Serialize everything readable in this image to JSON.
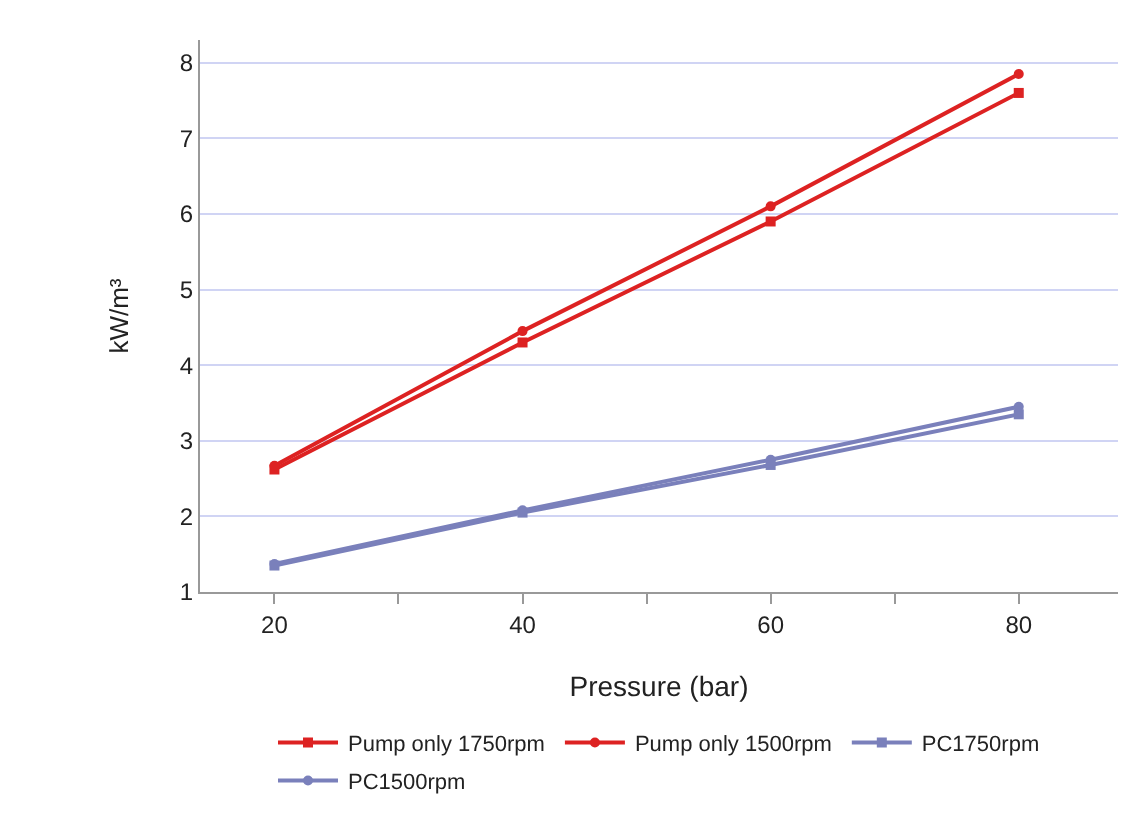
{
  "chart_data": {
    "type": "line",
    "xlabel": "Pressure (bar)",
    "ylabel": "kW/m³",
    "x": [
      20,
      40,
      60,
      80
    ],
    "series": [
      {
        "name": "Pump only 1750rpm",
        "color": "#dd2222",
        "marker": "square",
        "values": [
          2.62,
          4.3,
          5.9,
          7.6
        ]
      },
      {
        "name": "Pump only 1500rpm",
        "color": "#dd2222",
        "marker": "circle",
        "values": [
          2.67,
          4.45,
          6.1,
          7.85
        ]
      },
      {
        "name": "PC1750rpm",
        "color": "#7a80bb",
        "marker": "square",
        "values": [
          1.35,
          2.05,
          2.68,
          3.35
        ]
      },
      {
        "name": "PC1500rpm",
        "color": "#7a80bb",
        "marker": "circle",
        "values": [
          1.37,
          2.08,
          2.75,
          3.45
        ]
      }
    ],
    "xlim": [
      14,
      88
    ],
    "xticks": [
      20,
      {
        "value": 30,
        "label": null
      },
      40,
      {
        "value": 50,
        "label": null
      },
      60,
      {
        "value": 70,
        "label": null
      },
      80
    ],
    "ylim": [
      1,
      8.3
    ],
    "yticks": [
      1,
      2,
      3,
      4,
      5,
      6,
      7,
      8
    ],
    "grid": "y",
    "legend": "bottom"
  }
}
